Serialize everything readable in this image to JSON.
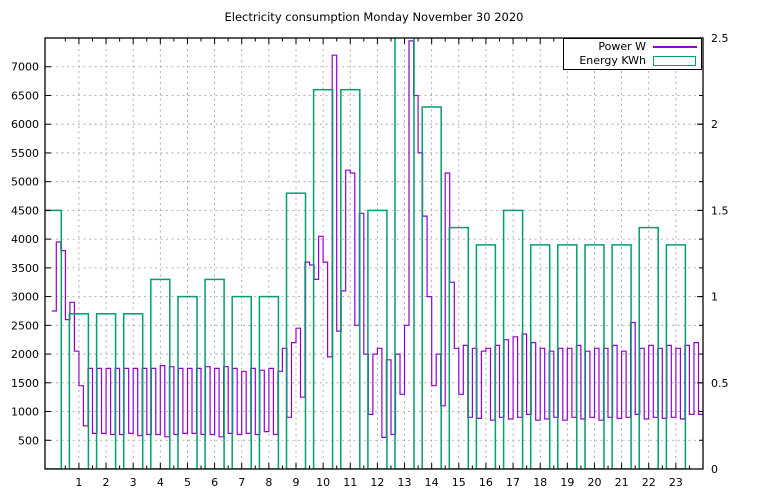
{
  "title": "Electricity consumption Monday November 30 2020",
  "legend": {
    "items": [
      {
        "label": "Power W",
        "color": "#9400d3",
        "sample": "line"
      },
      {
        "label": "Energy KWh",
        "color": "#009e73",
        "sample": "box"
      }
    ]
  },
  "chart_data": {
    "type": "combo",
    "title": "Electricity consumption Monday November 30 2020",
    "grid": true,
    "legend_position": "top-right-boxed",
    "x_axis": {
      "unit": "hour of day",
      "range": [
        -0.25,
        24
      ],
      "major_ticks": [
        1,
        2,
        3,
        4,
        5,
        6,
        7,
        8,
        9,
        10,
        11,
        12,
        13,
        14,
        15,
        16,
        17,
        18,
        19,
        20,
        21,
        22,
        23
      ],
      "minor_tick_step": 0.5
    },
    "y_left": {
      "series": "Power W",
      "range": [
        0,
        7500
      ],
      "ticks": [
        500,
        1000,
        1500,
        2000,
        2500,
        3000,
        3500,
        4000,
        4500,
        5000,
        5500,
        6000,
        6500,
        7000
      ]
    },
    "y_right": {
      "series": "Energy KWh",
      "range": [
        0,
        2.5
      ],
      "ticks": [
        0,
        0.5,
        1,
        1.5,
        2,
        2.5
      ]
    },
    "series": [
      {
        "name": "Power W",
        "type": "line-step",
        "axis": "left",
        "color": "#9400d3",
        "x_start_hour": 0,
        "x_step_minutes": 10,
        "values": [
          2750,
          3950,
          3800,
          2600,
          2900,
          2050,
          1450,
          750,
          1750,
          620,
          1750,
          620,
          1750,
          600,
          1750,
          600,
          1750,
          620,
          1750,
          580,
          1750,
          600,
          1750,
          600,
          1800,
          560,
          1780,
          600,
          1750,
          620,
          1750,
          620,
          1750,
          600,
          1780,
          600,
          1750,
          560,
          1780,
          620,
          1750,
          600,
          1700,
          620,
          1750,
          600,
          1720,
          650,
          1750,
          600,
          1700,
          2100,
          900,
          2200,
          2450,
          1250,
          3600,
          3550,
          3300,
          4050,
          3600,
          1950,
          7200,
          2400,
          3100,
          5200,
          5150,
          2500,
          4450,
          2000,
          950,
          2000,
          2100,
          550,
          1900,
          600,
          2000,
          1300,
          2500,
          7450,
          6500,
          5500,
          4400,
          3000,
          1450,
          2000,
          1100,
          5150,
          3250,
          2100,
          1300,
          2150,
          900,
          2100,
          880,
          2050,
          2100,
          850,
          2150,
          900,
          2250,
          870,
          2300,
          900,
          2350,
          950,
          2200,
          850,
          2100,
          870,
          2050,
          900,
          2100,
          850,
          2100,
          900,
          2150,
          870,
          2050,
          900,
          2100,
          850,
          2100,
          900,
          2150,
          880,
          2050,
          900,
          2550,
          950,
          2100,
          870,
          2150,
          900,
          2100,
          880,
          2150,
          900,
          2100,
          870,
          2150,
          950,
          2200,
          950
        ]
      },
      {
        "name": "Energy KWh",
        "type": "boxes",
        "axis": "right",
        "color": "#009e73",
        "box_width_hours": 0.7,
        "x_hours": [
          0,
          1,
          2,
          3,
          4,
          5,
          6,
          7,
          8,
          9,
          10,
          11,
          12,
          13,
          14,
          15,
          16,
          17,
          18,
          19,
          20,
          21,
          22,
          23
        ],
        "values": [
          1.5,
          0.9,
          0.9,
          0.9,
          1.1,
          1.0,
          1.1,
          1.0,
          1.0,
          1.6,
          2.2,
          2.2,
          1.5,
          2.55,
          2.1,
          1.4,
          1.3,
          1.5,
          1.3,
          1.3,
          1.3,
          1.3,
          1.4,
          1.3
        ],
        "note": "hour 13 box exceeds the 2.5 axis maximum and is clipped at the plot top"
      }
    ]
  }
}
